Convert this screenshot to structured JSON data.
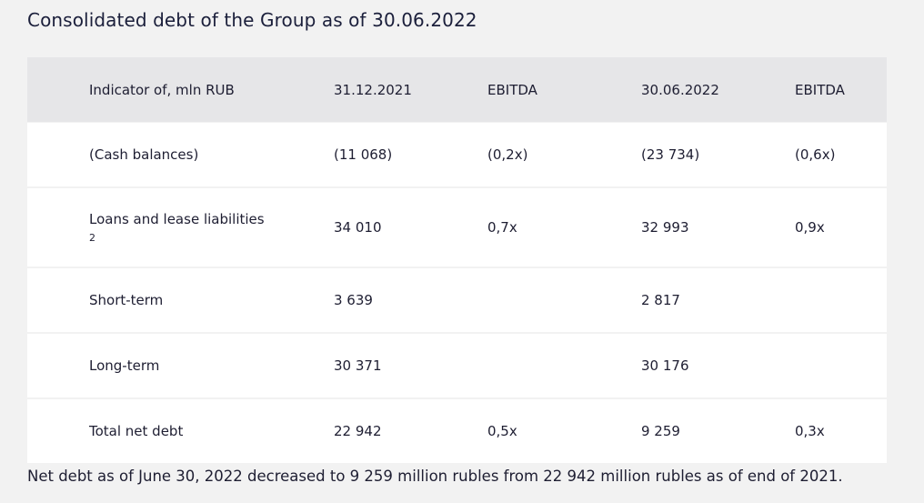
{
  "title": "Consolidated debt of the Group as of 30.06.2022",
  "table": {
    "headers": [
      "Indicator of, mln RUB",
      "31.12.2021",
      "EBITDA",
      "30.06.2022",
      "EBITDA"
    ],
    "rows": [
      {
        "indicator": "(Cash balances)",
        "note": "",
        "v2021": "(11 068)",
        "ebitda2021": "(0,2x)",
        "v2022": "(23 734)",
        "ebitda2022": "(0,6x)"
      },
      {
        "indicator": "Loans and lease liabilities",
        "note": "2",
        "v2021": "34 010",
        "ebitda2021": "0,7x",
        "v2022": "32 993",
        "ebitda2022": "0,9x"
      },
      {
        "indicator": "Short-term",
        "note": "",
        "v2021": "3 639",
        "ebitda2021": "",
        "v2022": "2 817",
        "ebitda2022": ""
      },
      {
        "indicator": "Long-term",
        "note": "",
        "v2021": "30 371",
        "ebitda2021": "",
        "v2022": "30 176",
        "ebitda2022": ""
      },
      {
        "indicator": "Total net debt",
        "note": "",
        "v2021": "22 942",
        "ebitda2021": "0,5x",
        "v2022": "9 259",
        "ebitda2022": "0,3x"
      }
    ]
  },
  "footer": "Net debt as of June 30, 2022 decreased to 9 259 million rubles from 22 942 million rubles as of end of 2021."
}
